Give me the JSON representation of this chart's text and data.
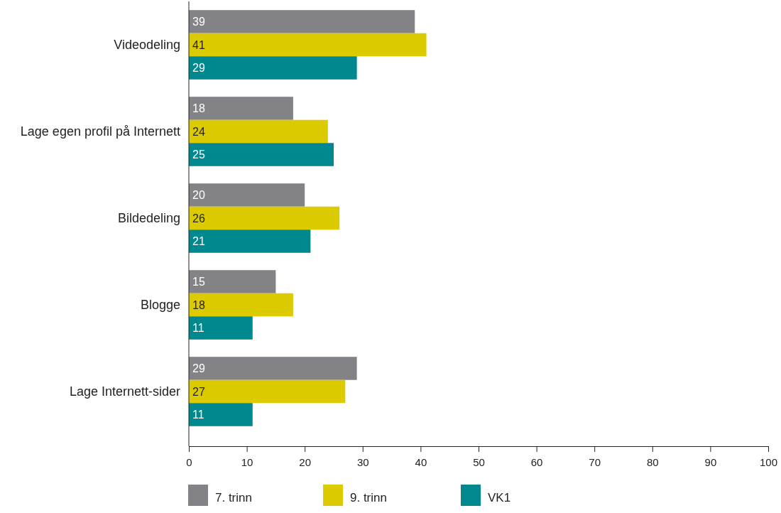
{
  "chart_data": {
    "type": "bar",
    "orientation": "horizontal",
    "categories": [
      "Videodeling",
      "Lage egen profil på Internett",
      "Bildedeling",
      "Blogge",
      "Lage Internett-sider"
    ],
    "series": [
      {
        "name": "7. trinn",
        "color": "#838387",
        "values": [
          39,
          18,
          20,
          15,
          29
        ]
      },
      {
        "name": "9. trinn",
        "color": "#dccb00",
        "values": [
          41,
          24,
          26,
          18,
          27
        ]
      },
      {
        "name": "VK1",
        "color": "#00888f",
        "values": [
          29,
          25,
          21,
          11,
          11
        ]
      }
    ],
    "xlim": [
      0,
      100
    ],
    "xticks": [
      0,
      10,
      20,
      30,
      40,
      50,
      60,
      70,
      80,
      90,
      100
    ],
    "grid": false,
    "legend": "bottom",
    "data_labels": true
  }
}
